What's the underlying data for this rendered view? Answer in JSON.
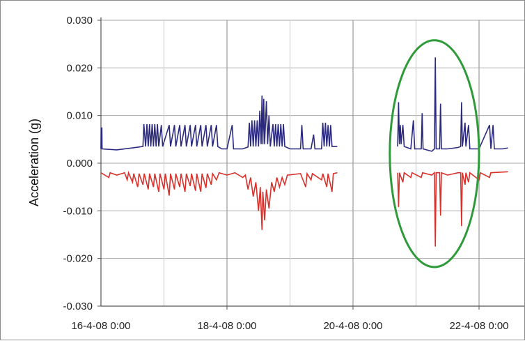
{
  "chart_data": {
    "type": "line",
    "title": "",
    "xlabel": "",
    "ylabel": "Acceleration (g)",
    "ylim": [
      -0.03,
      0.03
    ],
    "xlim": [
      "2008-04-16 00:00",
      "2008-04-22 12:00"
    ],
    "grid": true,
    "y_ticks": [
      "0.030",
      "0.020",
      "0.010",
      "0.000",
      "-0.010",
      "-0.020",
      "-0.030"
    ],
    "x_ticks": [
      "16-4-08 0:00",
      "18-4-08 0:00",
      "20-4-08 0:00",
      "22-4-08 0:00"
    ],
    "series": [
      {
        "color": "#2b2a7f",
        "points": [
          [
            "2008-04-16 00:00",
            0.003
          ],
          [
            "2008-04-16 00:05",
            0.0075
          ],
          [
            "2008-04-16 00:10",
            0.003
          ],
          [
            "2008-04-16 00:20",
            0.0075
          ],
          [
            "2008-04-16 00:25",
            0.003
          ],
          [
            "2008-04-16 06:00",
            0.0028
          ],
          [
            "2008-04-16 12:00",
            0.0032
          ],
          [
            "2008-04-16 16:00",
            0.0035
          ],
          [
            "2008-04-16 16:20",
            0.0082
          ],
          [
            "2008-04-16 17:00",
            0.0035
          ],
          [
            "2008-04-16 17:30",
            0.0082
          ],
          [
            "2008-04-16 18:00",
            0.0035
          ],
          [
            "2008-04-16 18:30",
            0.0082
          ],
          [
            "2008-04-16 19:00",
            0.0035
          ],
          [
            "2008-04-16 19:30",
            0.0082
          ],
          [
            "2008-04-16 20:00",
            0.0035
          ],
          [
            "2008-04-16 20:30",
            0.0082
          ],
          [
            "2008-04-16 21:00",
            0.0035
          ],
          [
            "2008-04-16 21:30",
            0.0082
          ],
          [
            "2008-04-16 22:00",
            0.0035
          ],
          [
            "2008-04-16 23:00",
            0.008
          ],
          [
            "2008-04-16 23:30",
            0.0035
          ],
          [
            "2008-04-17 02:00",
            0.008
          ],
          [
            "2008-04-17 02:30",
            0.0035
          ],
          [
            "2008-04-17 04:00",
            0.008
          ],
          [
            "2008-04-17 04:30",
            0.0035
          ],
          [
            "2008-04-17 06:00",
            0.008
          ],
          [
            "2008-04-17 06:30",
            0.0035
          ],
          [
            "2008-04-17 08:00",
            0.008
          ],
          [
            "2008-04-17 08:30",
            0.0035
          ],
          [
            "2008-04-17 10:00",
            0.008
          ],
          [
            "2008-04-17 10:30",
            0.0035
          ],
          [
            "2008-04-17 12:00",
            0.008
          ],
          [
            "2008-04-17 12:30",
            0.0035
          ],
          [
            "2008-04-17 14:00",
            0.008
          ],
          [
            "2008-04-17 14:30",
            0.0035
          ],
          [
            "2008-04-17 16:00",
            0.008
          ],
          [
            "2008-04-17 16:30",
            0.0035
          ],
          [
            "2008-04-17 18:00",
            0.008
          ],
          [
            "2008-04-17 18:30",
            0.0035
          ],
          [
            "2008-04-17 20:00",
            0.008
          ],
          [
            "2008-04-17 20:30",
            0.0035
          ],
          [
            "2008-04-17 22:00",
            0.003
          ],
          [
            "2008-04-18 00:00",
            0.003
          ],
          [
            "2008-04-18 02:00",
            0.008
          ],
          [
            "2008-04-18 02:30",
            0.003
          ],
          [
            "2008-04-18 06:00",
            0.003
          ],
          [
            "2008-04-18 08:00",
            0.0034
          ],
          [
            "2008-04-18 08:30",
            0.0085
          ],
          [
            "2008-04-18 09:00",
            0.0035
          ],
          [
            "2008-04-18 09:30",
            0.009
          ],
          [
            "2008-04-18 10:00",
            0.0035
          ],
          [
            "2008-04-18 10:30",
            0.009
          ],
          [
            "2008-04-18 11:00",
            0.0035
          ],
          [
            "2008-04-18 11:30",
            0.009
          ],
          [
            "2008-04-18 12:00",
            0.0035
          ],
          [
            "2008-04-18 12:30",
            0.011
          ],
          [
            "2008-04-18 13:00",
            0.004
          ],
          [
            "2008-04-18 13:20",
            0.0142
          ],
          [
            "2008-04-18 13:40",
            0.004
          ],
          [
            "2008-04-18 14:00",
            0.0135
          ],
          [
            "2008-04-18 14:20",
            0.004
          ],
          [
            "2008-04-18 15:00",
            0.013
          ],
          [
            "2008-04-18 15:30",
            0.004
          ],
          [
            "2008-04-18 16:00",
            0.01
          ],
          [
            "2008-04-18 16:30",
            0.0035
          ],
          [
            "2008-04-18 17:30",
            0.0082
          ],
          [
            "2008-04-18 18:00",
            0.0035
          ],
          [
            "2008-04-18 18:30",
            0.0082
          ],
          [
            "2008-04-18 19:00",
            0.0035
          ],
          [
            "2008-04-18 19:30",
            0.0082
          ],
          [
            "2008-04-18 20:00",
            0.0035
          ],
          [
            "2008-04-18 20:30",
            0.0082
          ],
          [
            "2008-04-18 21:00",
            0.0035
          ],
          [
            "2008-04-18 21:30",
            0.0082
          ],
          [
            "2008-04-18 22:00",
            0.0035
          ],
          [
            "2008-04-19 00:00",
            0.003
          ],
          [
            "2008-04-19 04:00",
            0.003
          ],
          [
            "2008-04-19 04:30",
            0.008
          ],
          [
            "2008-04-19 05:00",
            0.003
          ],
          [
            "2008-04-19 08:00",
            0.003
          ],
          [
            "2008-04-19 09:00",
            0.006
          ],
          [
            "2008-04-19 09:30",
            0.003
          ],
          [
            "2008-04-19 12:00",
            0.003
          ],
          [
            "2008-04-19 12:30",
            0.0085
          ],
          [
            "2008-04-19 13:00",
            0.0035
          ],
          [
            "2008-04-19 13:30",
            0.0085
          ],
          [
            "2008-04-19 14:00",
            0.0035
          ],
          [
            "2008-04-19 14:30",
            0.008
          ],
          [
            "2008-04-19 15:00",
            0.0035
          ],
          [
            "2008-04-19 15:30",
            0.008
          ],
          [
            "2008-04-19 16:00",
            0.0035
          ],
          [
            "2008-04-19 18:00",
            0.0035
          ],
          null,
          [
            "2008-04-20 17:00",
            0.0035
          ],
          [
            "2008-04-20 17:20",
            0.0128
          ],
          [
            "2008-04-20 17:40",
            0.004
          ],
          [
            "2008-04-20 18:00",
            0.008
          ],
          [
            "2008-04-20 18:20",
            0.004
          ],
          [
            "2008-04-20 19:00",
            0.008
          ],
          [
            "2008-04-20 19:30",
            0.0035
          ],
          [
            "2008-04-20 22:00",
            0.003
          ],
          [
            "2008-04-20 23:00",
            0.009
          ],
          [
            "2008-04-20 23:30",
            0.003
          ],
          [
            "2008-04-21 02:00",
            0.003
          ],
          [
            "2008-04-21 02:20",
            0.0105
          ],
          [
            "2008-04-21 02:40",
            0.003
          ],
          [
            "2008-04-21 06:00",
            0.0025
          ],
          [
            "2008-04-21 07:00",
            0.003
          ],
          [
            "2008-04-21 07:20",
            0.0222
          ],
          [
            "2008-04-21 07:40",
            0.003
          ],
          [
            "2008-04-21 09:00",
            0.003
          ],
          [
            "2008-04-21 09:20",
            0.0125
          ],
          [
            "2008-04-21 09:40",
            0.003
          ],
          [
            "2008-04-21 12:00",
            0.003
          ],
          [
            "2008-04-21 16:00",
            0.0033
          ],
          [
            "2008-04-21 17:00",
            0.0035
          ],
          [
            "2008-04-21 17:20",
            0.0128
          ],
          [
            "2008-04-21 17:40",
            0.0035
          ],
          [
            "2008-04-21 18:40",
            0.0085
          ],
          [
            "2008-04-21 19:00",
            0.0035
          ],
          [
            "2008-04-21 20:00",
            0.008
          ],
          [
            "2008-04-21 20:30",
            0.003
          ],
          [
            "2008-04-22 00:00",
            0.003
          ],
          [
            "2008-04-22 04:00",
            0.008
          ],
          [
            "2008-04-22 04:30",
            0.003
          ],
          [
            "2008-04-22 05:20",
            0.008
          ],
          [
            "2008-04-22 05:50",
            0.003
          ],
          [
            "2008-04-22 09:00",
            0.003
          ],
          [
            "2008-04-22 11:00",
            0.0032
          ]
        ]
      },
      {
        "color": "#d9302a",
        "points": [
          [
            "2008-04-16 00:00",
            -0.002
          ],
          [
            "2008-04-16 03:00",
            -0.003
          ],
          [
            "2008-04-16 03:30",
            -0.002
          ],
          [
            "2008-04-16 06:00",
            -0.0025
          ],
          [
            "2008-04-16 09:00",
            -0.002
          ],
          [
            "2008-04-16 10:00",
            -0.0035
          ],
          [
            "2008-04-16 10:30",
            -0.002
          ],
          [
            "2008-04-16 12:00",
            -0.004
          ],
          [
            "2008-04-16 12:30",
            -0.0022
          ],
          [
            "2008-04-16 14:00",
            -0.005
          ],
          [
            "2008-04-16 14:30",
            -0.0022
          ],
          [
            "2008-04-16 16:00",
            -0.0045
          ],
          [
            "2008-04-16 16:30",
            -0.0022
          ],
          [
            "2008-04-16 18:00",
            -0.0055
          ],
          [
            "2008-04-16 18:30",
            -0.0022
          ],
          [
            "2008-04-16 20:00",
            -0.005
          ],
          [
            "2008-04-16 20:30",
            -0.0022
          ],
          [
            "2008-04-16 22:00",
            -0.006
          ],
          [
            "2008-04-16 22:30",
            -0.0022
          ],
          [
            "2008-04-17 00:00",
            -0.0055
          ],
          [
            "2008-04-17 00:30",
            -0.0022
          ],
          [
            "2008-04-17 02:00",
            -0.0068
          ],
          [
            "2008-04-17 02:30",
            -0.0022
          ],
          [
            "2008-04-17 04:00",
            -0.0055
          ],
          [
            "2008-04-17 04:30",
            -0.0022
          ],
          [
            "2008-04-17 06:00",
            -0.005
          ],
          [
            "2008-04-17 06:30",
            -0.0022
          ],
          [
            "2008-04-17 08:00",
            -0.006
          ],
          [
            "2008-04-17 08:30",
            -0.0022
          ],
          [
            "2008-04-17 10:00",
            -0.0048
          ],
          [
            "2008-04-17 10:30",
            -0.0022
          ],
          [
            "2008-04-17 12:00",
            -0.0058
          ],
          [
            "2008-04-17 12:30",
            -0.0022
          ],
          [
            "2008-04-17 14:00",
            -0.006
          ],
          [
            "2008-04-17 14:30",
            -0.0022
          ],
          [
            "2008-04-17 16:00",
            -0.0052
          ],
          [
            "2008-04-17 16:30",
            -0.0022
          ],
          [
            "2008-04-17 18:00",
            -0.0045
          ],
          [
            "2008-04-17 18:30",
            -0.0022
          ],
          [
            "2008-04-17 20:00",
            -0.0035
          ],
          [
            "2008-04-17 21:00",
            -0.002
          ],
          [
            "2008-04-18 00:00",
            -0.0025
          ],
          [
            "2008-04-18 03:00",
            -0.002
          ],
          [
            "2008-04-18 06:00",
            -0.003
          ],
          [
            "2008-04-18 07:00",
            -0.0025
          ],
          [
            "2008-04-18 08:00",
            -0.0055
          ],
          [
            "2008-04-18 09:00",
            -0.003
          ],
          [
            "2008-04-18 10:00",
            -0.007
          ],
          [
            "2008-04-18 11:00",
            -0.004
          ],
          [
            "2008-04-18 12:00",
            -0.01
          ],
          [
            "2008-04-18 12:40",
            -0.005
          ],
          [
            "2008-04-18 13:20",
            -0.014
          ],
          [
            "2008-04-18 13:40",
            -0.006
          ],
          [
            "2008-04-18 14:20",
            -0.012
          ],
          [
            "2008-04-18 15:00",
            -0.0055
          ],
          [
            "2008-04-18 16:00",
            -0.0095
          ],
          [
            "2008-04-18 17:00",
            -0.004
          ],
          [
            "2008-04-18 18:00",
            -0.006
          ],
          [
            "2008-04-18 19:00",
            -0.003
          ],
          [
            "2008-04-18 20:00",
            -0.005
          ],
          [
            "2008-04-18 21:00",
            -0.003
          ],
          [
            "2008-04-18 22:00",
            -0.0045
          ],
          [
            "2008-04-18 23:00",
            -0.0025
          ],
          [
            "2008-04-19 04:00",
            -0.0022
          ],
          [
            "2008-04-19 06:00",
            -0.005
          ],
          [
            "2008-04-19 06:30",
            -0.0022
          ],
          [
            "2008-04-19 08:00",
            -0.0035
          ],
          [
            "2008-04-19 08:30",
            -0.0022
          ],
          [
            "2008-04-19 12:00",
            -0.0035
          ],
          [
            "2008-04-19 12:30",
            -0.0022
          ],
          [
            "2008-04-19 14:00",
            -0.005
          ],
          [
            "2008-04-19 14:30",
            -0.0022
          ],
          [
            "2008-04-19 16:00",
            -0.006
          ],
          [
            "2008-04-19 16:30",
            -0.0022
          ],
          [
            "2008-04-19 18:00",
            -0.002
          ],
          null,
          [
            "2008-04-20 17:00",
            -0.002
          ],
          [
            "2008-04-20 17:20",
            -0.0092
          ],
          [
            "2008-04-20 17:40",
            -0.002
          ],
          [
            "2008-04-20 19:00",
            -0.004
          ],
          [
            "2008-04-20 19:30",
            -0.002
          ],
          [
            "2008-04-20 22:00",
            -0.003
          ],
          [
            "2008-04-20 22:30",
            -0.002
          ],
          [
            "2008-04-21 02:00",
            -0.003
          ],
          [
            "2008-04-21 02:30",
            -0.002
          ],
          [
            "2008-04-21 06:00",
            -0.0025
          ],
          [
            "2008-04-21 07:00",
            -0.002
          ],
          [
            "2008-04-21 07:20",
            -0.0175
          ],
          [
            "2008-04-21 07:40",
            -0.002
          ],
          [
            "2008-04-21 09:00",
            -0.002
          ],
          [
            "2008-04-21 09:20",
            -0.011
          ],
          [
            "2008-04-21 09:40",
            -0.002
          ],
          [
            "2008-04-21 12:00",
            -0.0025
          ],
          [
            "2008-04-21 16:00",
            -0.002
          ],
          [
            "2008-04-21 17:00",
            -0.002
          ],
          [
            "2008-04-21 17:20",
            -0.0132
          ],
          [
            "2008-04-21 17:40",
            -0.002
          ],
          [
            "2008-04-21 18:40",
            -0.0045
          ],
          [
            "2008-04-21 19:00",
            -0.002
          ],
          [
            "2008-04-21 20:00",
            -0.004
          ],
          [
            "2008-04-21 20:30",
            -0.002
          ],
          [
            "2008-04-22 00:00",
            -0.0035
          ],
          [
            "2008-04-22 00:30",
            -0.002
          ],
          [
            "2008-04-22 04:00",
            -0.003
          ],
          [
            "2008-04-22 04:30",
            -0.002
          ],
          [
            "2008-04-22 11:00",
            -0.0018
          ]
        ]
      }
    ],
    "annotations": [
      {
        "type": "ellipse",
        "color": "#2f9a3a",
        "center": [
          "2008-04-21 07:00",
          0.002
        ],
        "x_halfwidth_hours": 17,
        "y_halfheight": 0.0238
      }
    ]
  }
}
